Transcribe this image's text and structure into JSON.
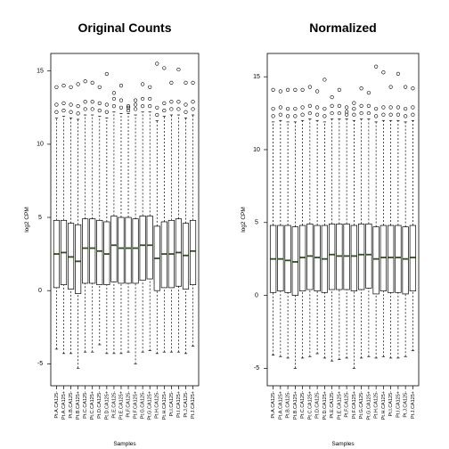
{
  "chart_data": [
    {
      "type": "boxplot",
      "title": "Original Counts",
      "x_label": "Samples",
      "y_label": "log2 CPM",
      "categories": [
        "Pt.A.CA125-",
        "Pt.A.CA125+",
        "Pt.B.CA125-",
        "Pt.B.CA125+",
        "Pt.C.CA125-",
        "Pt.C.CA125+",
        "Pt.D.CA125-",
        "Pt.D.CA125+",
        "Pt.E.CA125-",
        "Pt.E.CA125+",
        "Pt.F.CA125-",
        "Pt.F.CA125+",
        "Pt.G.CA125-",
        "Pt.G.CA125+",
        "Pt.H.CA125-",
        "Pt.H.CA125+",
        "Pt.I.CA125-",
        "Pt.I.CA125+",
        "Pt.J.CA125-",
        "Pt.J.CA125+"
      ],
      "whisker_low": [
        -4.0,
        -4.3,
        -4.3,
        -5.3,
        -4.2,
        -4.2,
        -3.7,
        -4.3,
        -4.3,
        -4.3,
        -4.2,
        -5.0,
        -4.2,
        -4.1,
        -4.3,
        -4.2,
        -4.2,
        -4.2,
        -4.3,
        -3.8
      ],
      "q1": [
        0.2,
        0.4,
        0.1,
        -0.2,
        0.5,
        0.5,
        0.4,
        0.4,
        0.6,
        0.5,
        0.5,
        0.5,
        0.7,
        0.8,
        0.0,
        0.2,
        0.2,
        0.3,
        0.1,
        0.4
      ],
      "median": [
        2.5,
        2.6,
        2.3,
        2.0,
        2.9,
        2.9,
        2.7,
        2.5,
        3.1,
        2.9,
        2.9,
        2.9,
        3.1,
        3.1,
        2.2,
        2.5,
        2.5,
        2.6,
        2.4,
        2.7
      ],
      "q3": [
        4.8,
        4.8,
        4.6,
        4.5,
        4.9,
        4.9,
        4.8,
        4.7,
        5.1,
        5.0,
        5.0,
        4.9,
        5.1,
        5.1,
        4.4,
        4.7,
        4.8,
        4.9,
        4.6,
        4.8
      ],
      "whisker_high": [
        11.8,
        11.9,
        11.8,
        11.7,
        12.0,
        12.0,
        11.9,
        11.8,
        12.2,
        12.1,
        12.1,
        12.0,
        12.2,
        12.2,
        11.6,
        11.9,
        12.0,
        12.0,
        11.8,
        12.0
      ],
      "outliers": [
        [
          12.2,
          12.7,
          13.9
        ],
        [
          12.3,
          12.8,
          14.0
        ],
        [
          12.2,
          12.7,
          13.9
        ],
        [
          12.1,
          12.6,
          14.1
        ],
        [
          12.4,
          12.9,
          14.3
        ],
        [
          12.4,
          12.9,
          14.2
        ],
        [
          12.3,
          12.8,
          13.9
        ],
        [
          12.2,
          12.7,
          14.8
        ],
        [
          12.6,
          13.1,
          13.5
        ],
        [
          12.5,
          13.0,
          14.0
        ],
        [
          12.3,
          12.5,
          12.6
        ],
        [
          12.4,
          12.7,
          13.0
        ],
        [
          12.6,
          13.1,
          14.1
        ],
        [
          12.6,
          13.1,
          13.9
        ],
        [
          12.0,
          12.5,
          15.5
        ],
        [
          12.3,
          12.8,
          15.2
        ],
        [
          12.4,
          12.9,
          14.2
        ],
        [
          12.4,
          12.9,
          15.1
        ],
        [
          12.2,
          12.7,
          14.2
        ],
        [
          12.4,
          12.9,
          14.2
        ]
      ],
      "box_color": "#ffffff",
      "median_color": "#2f4f1f",
      "ylim": [
        -6.5,
        16.2
      ],
      "yticks": [
        -5,
        0,
        5,
        10,
        15
      ]
    },
    {
      "type": "boxplot",
      "title": "Normalized",
      "x_label": "Samples",
      "y_label": "log2 CPM",
      "categories": [
        "Pt.A.CA125-",
        "Pt.A.CA125+",
        "Pt.B.CA125-",
        "Pt.B.CA125+",
        "Pt.C.CA125-",
        "Pt.C.CA125+",
        "Pt.D.CA125-",
        "Pt.D.CA125+",
        "Pt.E.CA125-",
        "Pt.E.CA125+",
        "Pt.F.CA125-",
        "Pt.F.CA125+",
        "Pt.G.CA125-",
        "Pt.G.CA125+",
        "Pt.H.CA125-",
        "Pt.H.CA125+",
        "Pt.I.CA125-",
        "Pt.I.CA125+",
        "Pt.J.CA125-",
        "Pt.J.CA125+"
      ],
      "whisker_low": [
        -4.1,
        -4.2,
        -4.3,
        -5.0,
        -4.3,
        -4.2,
        -4.0,
        -4.3,
        -4.5,
        -4.4,
        -4.3,
        -5.0,
        -4.3,
        -4.2,
        -4.3,
        -4.2,
        -4.3,
        -4.3,
        -4.2,
        -3.8
      ],
      "q1": [
        0.2,
        0.3,
        0.2,
        0.0,
        0.3,
        0.4,
        0.3,
        0.2,
        0.4,
        0.4,
        0.4,
        0.3,
        0.4,
        0.5,
        0.1,
        0.3,
        0.2,
        0.2,
        0.1,
        0.3
      ],
      "median": [
        2.5,
        2.5,
        2.4,
        2.3,
        2.6,
        2.7,
        2.6,
        2.5,
        2.8,
        2.7,
        2.7,
        2.7,
        2.8,
        2.8,
        2.5,
        2.6,
        2.6,
        2.6,
        2.5,
        2.6
      ],
      "q3": [
        4.8,
        4.8,
        4.8,
        4.7,
        4.8,
        4.9,
        4.8,
        4.8,
        4.9,
        4.9,
        4.9,
        4.8,
        4.9,
        4.9,
        4.7,
        4.8,
        4.8,
        4.8,
        4.7,
        4.8
      ],
      "whisker_high": [
        11.9,
        12.0,
        11.9,
        11.9,
        12.0,
        12.1,
        12.0,
        11.9,
        12.1,
        12.1,
        12.1,
        12.0,
        12.1,
        12.1,
        11.9,
        12.0,
        12.0,
        12.0,
        11.9,
        12.0
      ],
      "outliers": [
        [
          12.3,
          12.8,
          14.1
        ],
        [
          12.4,
          12.9,
          14.0
        ],
        [
          12.3,
          12.8,
          14.1
        ],
        [
          12.3,
          12.8,
          14.1
        ],
        [
          12.4,
          12.9,
          14.1
        ],
        [
          12.5,
          13.0,
          14.3
        ],
        [
          12.4,
          12.9,
          14.0
        ],
        [
          12.3,
          12.8,
          14.8
        ],
        [
          12.5,
          13.0,
          13.6
        ],
        [
          12.5,
          13.0,
          14.1
        ],
        [
          12.4,
          12.6,
          12.9
        ],
        [
          12.4,
          12.8,
          13.2
        ],
        [
          12.5,
          13.0,
          14.2
        ],
        [
          12.5,
          13.0,
          13.9
        ],
        [
          12.3,
          12.8,
          15.7
        ],
        [
          12.4,
          12.9,
          15.3
        ],
        [
          12.4,
          12.9,
          14.3
        ],
        [
          12.4,
          12.9,
          15.2
        ],
        [
          12.3,
          12.8,
          14.3
        ],
        [
          12.4,
          12.9,
          14.2
        ]
      ],
      "box_color": "#ffffff",
      "median_color": "#2f4f1f",
      "ylim": [
        -6.2,
        16.6
      ],
      "yticks": [
        -5,
        0,
        5,
        10,
        15
      ]
    }
  ]
}
